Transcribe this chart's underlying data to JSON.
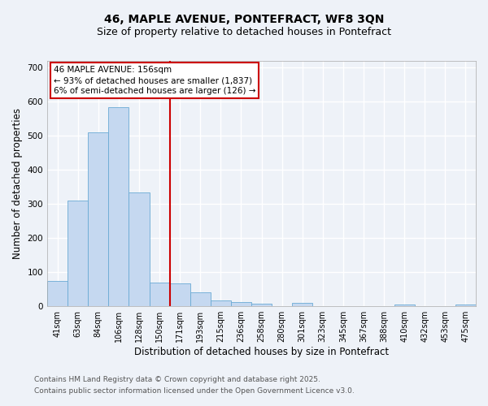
{
  "title1": "46, MAPLE AVENUE, PONTEFRACT, WF8 3QN",
  "title2": "Size of property relative to detached houses in Pontefract",
  "xlabel": "Distribution of detached houses by size in Pontefract",
  "ylabel": "Number of detached properties",
  "bin_labels": [
    "41sqm",
    "63sqm",
    "84sqm",
    "106sqm",
    "128sqm",
    "150sqm",
    "171sqm",
    "193sqm",
    "215sqm",
    "236sqm",
    "258sqm",
    "280sqm",
    "301sqm",
    "323sqm",
    "345sqm",
    "367sqm",
    "388sqm",
    "410sqm",
    "432sqm",
    "453sqm",
    "475sqm"
  ],
  "bar_values": [
    75,
    310,
    510,
    585,
    335,
    70,
    68,
    40,
    18,
    13,
    8,
    0,
    10,
    0,
    0,
    0,
    0,
    5,
    0,
    0,
    5
  ],
  "bar_color": "#c5d8f0",
  "bar_edge_color": "#6aaad4",
  "vline_x_index": 5,
  "vline_color": "#cc0000",
  "annotation_title": "46 MAPLE AVENUE: 156sqm",
  "annotation_line1": "← 93% of detached houses are smaller (1,837)",
  "annotation_line2": "6% of semi-detached houses are larger (126) →",
  "annotation_box_color": "#cc0000",
  "ylim": [
    0,
    720
  ],
  "yticks": [
    0,
    100,
    200,
    300,
    400,
    500,
    600,
    700
  ],
  "footer1": "Contains HM Land Registry data © Crown copyright and database right 2025.",
  "footer2": "Contains public sector information licensed under the Open Government Licence v3.0.",
  "bg_color": "#eef2f8",
  "grid_color": "#ffffff",
  "title_fontsize": 10,
  "subtitle_fontsize": 9,
  "tick_fontsize": 7,
  "label_fontsize": 8.5,
  "footer_fontsize": 6.5,
  "annotation_fontsize": 7.5
}
